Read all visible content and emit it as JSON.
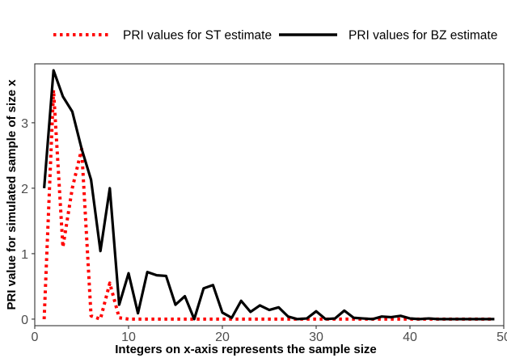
{
  "chart_data": {
    "type": "line",
    "title": "",
    "xlabel": "Integers on x-axis represents the sample size",
    "ylabel": "PRI value for simulated sample of size x",
    "xlim": [
      0,
      50
    ],
    "ylim": [
      -0.1,
      3.9
    ],
    "xticks": [
      0,
      10,
      20,
      30,
      40,
      50
    ],
    "yticks": [
      0,
      1,
      2,
      3
    ],
    "grid": false,
    "legend_position": "top",
    "series": [
      {
        "name": "PRI values for ST estimate",
        "color": "#ff0000",
        "style": "dotted",
        "x": [
          1,
          2,
          3,
          4,
          5,
          6,
          7,
          8,
          9,
          10,
          11,
          12,
          13,
          14,
          15,
          16,
          17,
          18,
          19,
          20,
          21,
          22,
          23,
          24,
          25,
          26,
          27,
          28,
          29,
          30,
          31,
          32,
          33,
          34,
          35,
          36,
          37,
          38,
          39,
          40,
          41,
          42,
          43,
          44,
          45,
          46,
          47,
          48,
          49
        ],
        "y": [
          0.0,
          3.5,
          1.1,
          2.0,
          2.6,
          0.05,
          0.0,
          0.55,
          0.02,
          0.0,
          0.0,
          0.0,
          0.0,
          0.0,
          0.0,
          0.0,
          0.0,
          0.0,
          0.0,
          0.0,
          0.0,
          0.0,
          0.0,
          0.0,
          0.0,
          0.0,
          0.0,
          0.0,
          0.0,
          0.0,
          0.0,
          0.0,
          0.0,
          0.0,
          0.0,
          0.0,
          0.0,
          0.0,
          0.0,
          0.0,
          0.0,
          0.0,
          0.0,
          0.0,
          0.0,
          0.0,
          0.0,
          0.0,
          0.0
        ]
      },
      {
        "name": "PRI values for BZ estimate",
        "color": "#000000",
        "style": "solid",
        "x": [
          1,
          2,
          3,
          4,
          5,
          6,
          7,
          8,
          9,
          10,
          11,
          12,
          13,
          14,
          15,
          16,
          17,
          18,
          19,
          20,
          21,
          22,
          23,
          24,
          25,
          26,
          27,
          28,
          29,
          30,
          31,
          32,
          33,
          34,
          35,
          36,
          37,
          38,
          39,
          40,
          41,
          42,
          43,
          44,
          45,
          46,
          47,
          48,
          49
        ],
        "y": [
          2.0,
          3.8,
          3.4,
          3.17,
          2.6,
          2.13,
          1.04,
          2.0,
          0.22,
          0.7,
          0.09,
          0.72,
          0.67,
          0.66,
          0.22,
          0.35,
          0.0,
          0.47,
          0.52,
          0.1,
          0.02,
          0.28,
          0.11,
          0.21,
          0.14,
          0.18,
          0.04,
          0.0,
          0.01,
          0.12,
          0.0,
          0.01,
          0.13,
          0.02,
          0.01,
          0.0,
          0.04,
          0.03,
          0.05,
          0.01,
          0.0,
          0.01,
          0.0,
          0.0,
          0.0,
          0.0,
          0.0,
          0.0,
          0.0
        ]
      }
    ]
  }
}
